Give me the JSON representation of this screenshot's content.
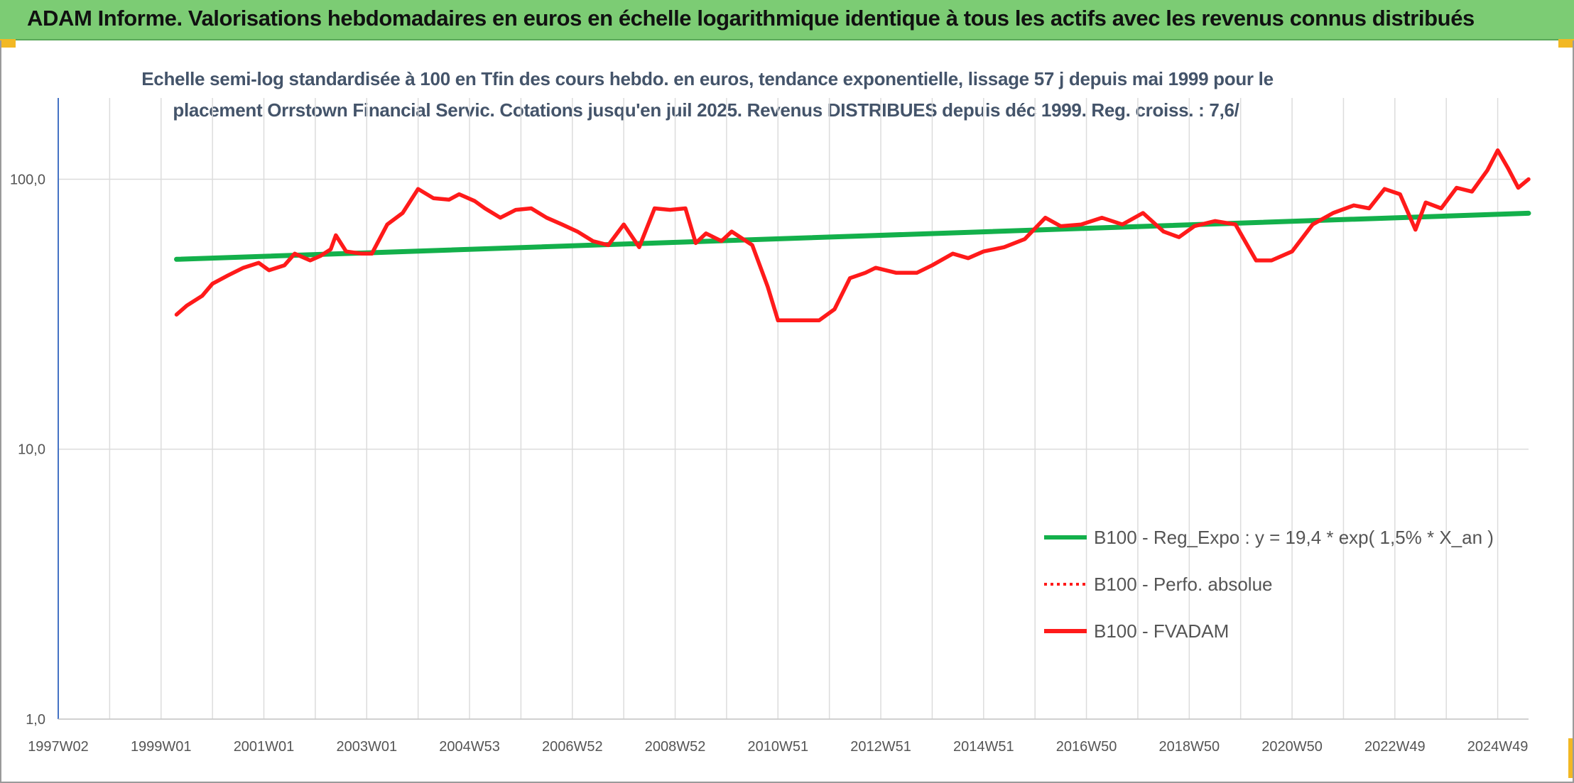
{
  "header": {
    "title": "ADAM Informe. Valorisations hebdomadaires en euros en échelle logarithmique identique à tous les actifs avec les revenus connus distribués"
  },
  "chart_data": {
    "type": "line",
    "subtitle_line1": "Echelle semi-log standardisée à 100 en Tfin des cours hebdo. en euros, tendance exponentielle, lissage 57 j depuis mai 1999 pour le",
    "subtitle_line2": "placement Orrstown Financial Servic. Cotations jusqu'en juil 2025. Revenus DISTRIBUES depuis déc 1999. Reg. croiss. : 7,6/",
    "y_scale": "log",
    "ylim": [
      1,
      200
    ],
    "y_ticks": [
      {
        "value": 1,
        "label": "1,0"
      },
      {
        "value": 10,
        "label": "10,0"
      },
      {
        "value": 100,
        "label": "100,0"
      }
    ],
    "xlim": [
      1997.0,
      2025.6
    ],
    "x_ticks": [
      {
        "value": 1997.0,
        "label": "1997W02"
      },
      {
        "value": 1999.0,
        "label": "1999W01"
      },
      {
        "value": 2001.0,
        "label": "2001W01"
      },
      {
        "value": 2003.0,
        "label": "2003W01"
      },
      {
        "value": 2005.0,
        "label": "2004W53"
      },
      {
        "value": 2007.0,
        "label": "2006W52"
      },
      {
        "value": 2009.0,
        "label": "2008W52"
      },
      {
        "value": 2011.0,
        "label": "2010W51"
      },
      {
        "value": 2013.0,
        "label": "2012W51"
      },
      {
        "value": 2015.0,
        "label": "2014W51"
      },
      {
        "value": 2017.0,
        "label": "2016W50"
      },
      {
        "value": 2019.0,
        "label": "2018W50"
      },
      {
        "value": 2021.0,
        "label": "2020W50"
      },
      {
        "value": 2023.0,
        "label": "2022W49"
      },
      {
        "value": 2025.0,
        "label": "2024W49"
      }
    ],
    "grid": "vertical",
    "legend_position": "bottom-right",
    "series": [
      {
        "name": "B100 - Reg_Expo : y = 19,4 * exp( 1,5% *  X_an )",
        "color": "#13b04b",
        "style": "solid",
        "x": [
          1999.3,
          2025.6
        ],
        "y": [
          50.5,
          74.8
        ]
      },
      {
        "name": "B100 - Perfo. absolue",
        "color": "#ff1a1a",
        "style": "dotted",
        "x": [],
        "y": []
      },
      {
        "name": "B100 - FVADAM",
        "color": "#ff1a1a",
        "style": "solid",
        "x": [
          1999.3,
          1999.5,
          1999.8,
          2000.0,
          2000.3,
          2000.6,
          2000.9,
          2001.1,
          2001.4,
          2001.6,
          2001.9,
          2002.1,
          2002.3,
          2002.4,
          2002.6,
          2002.9,
          2003.1,
          2003.4,
          2003.7,
          2004.0,
          2004.3,
          2004.6,
          2004.8,
          2005.1,
          2005.3,
          2005.6,
          2005.9,
          2006.2,
          2006.5,
          2006.8,
          2007.1,
          2007.4,
          2007.7,
          2008.0,
          2008.3,
          2008.6,
          2008.9,
          2009.2,
          2009.4,
          2009.6,
          2009.9,
          2010.1,
          2010.5,
          2010.8,
          2011.0,
          2011.3,
          2011.6,
          2011.8,
          2012.1,
          2012.4,
          2012.7,
          2012.9,
          2013.3,
          2013.7,
          2014.0,
          2014.4,
          2014.7,
          2015.0,
          2015.4,
          2015.8,
          2016.2,
          2016.5,
          2016.9,
          2017.3,
          2017.7,
          2018.1,
          2018.5,
          2018.8,
          2019.1,
          2019.5,
          2019.9,
          2020.3,
          2020.6,
          2021.0,
          2021.4,
          2021.8,
          2022.2,
          2022.5,
          2022.8,
          2023.1,
          2023.4,
          2023.6,
          2023.9,
          2024.2,
          2024.5,
          2024.8,
          2025.0,
          2025.2,
          2025.4,
          2025.6
        ],
        "y": [
          31.5,
          34,
          37,
          41,
          44,
          47,
          49,
          46,
          48,
          53,
          50,
          52,
          55,
          62,
          54,
          53,
          53,
          68,
          75,
          92,
          85,
          84,
          88,
          83,
          78,
          72,
          77,
          78,
          72,
          68,
          64,
          59,
          57,
          68,
          56,
          78,
          77,
          78,
          58,
          63,
          59,
          64,
          57,
          40,
          30,
          30,
          30,
          30,
          33,
          43,
          45,
          47,
          45,
          45,
          48,
          53,
          51,
          54,
          56,
          60,
          72,
          67,
          68,
          72,
          68,
          75,
          64,
          61,
          67,
          70,
          68,
          50,
          50,
          54,
          68,
          75,
          80,
          78,
          92,
          88,
          65,
          82,
          78,
          93,
          90,
          108,
          128,
          110,
          93,
          100
        ]
      }
    ]
  }
}
